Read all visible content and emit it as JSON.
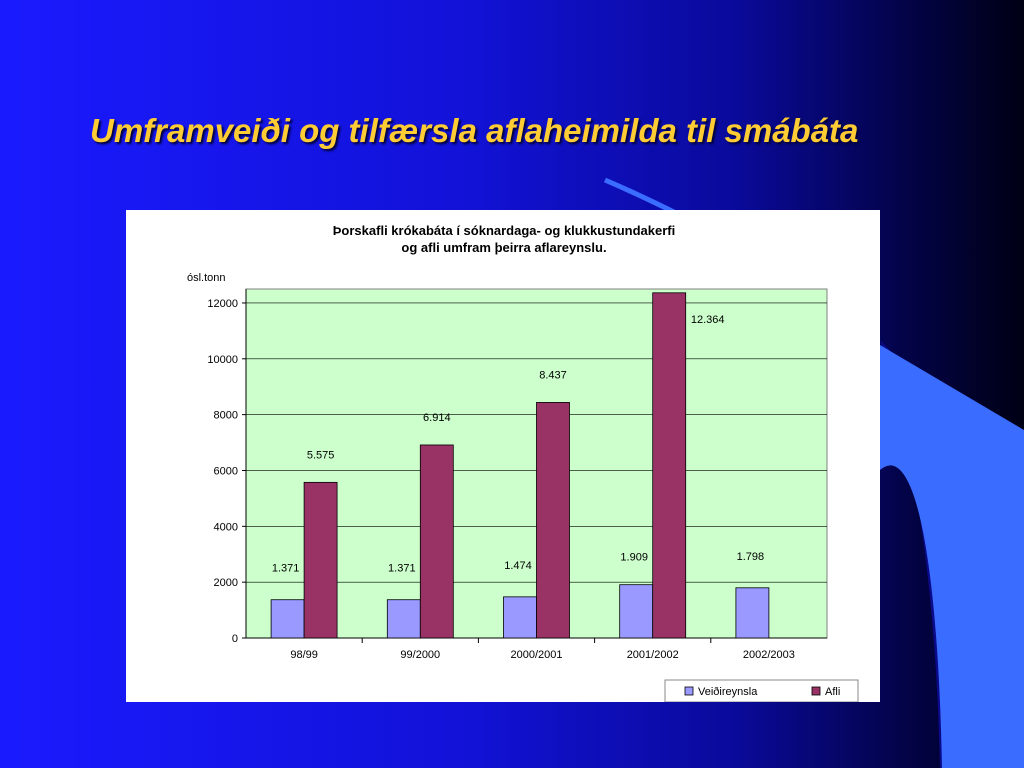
{
  "slide": {
    "title": "Umframveiði og tilfærsla aflaheimilda til smábáta"
  },
  "colors": {
    "title": "#ffcc33",
    "plot_background": "#ccffcc",
    "series_1": "#9999ff",
    "series_2": "#993366"
  },
  "chart_data": {
    "type": "bar",
    "title": [
      "Þorskafli krókabáta í sóknardaga- og klukkustundakerfi",
      "og afli umfram þeirra aflareynslu."
    ],
    "ylabel": "ósl.tonn",
    "xlabel": "",
    "ylim": [
      0,
      12500
    ],
    "yticks": [
      0,
      2000,
      4000,
      6000,
      8000,
      10000,
      12000
    ],
    "grid": true,
    "legend_position": "bottom-right",
    "categories": [
      "98/99",
      "99/2000",
      "2000/2001",
      "2001/2002",
      "2002/2003"
    ],
    "series": [
      {
        "name": "Veiðireynsla",
        "values": [
          1371,
          1371,
          1474,
          1909,
          1798
        ],
        "labels": [
          "1.371",
          "1.371",
          "1.474",
          "1.909",
          "1.798"
        ]
      },
      {
        "name": "Afli",
        "values": [
          5575,
          6914,
          8437,
          12364,
          null
        ],
        "labels": [
          "5.575",
          "6.914",
          "8.437",
          "12.364",
          null
        ]
      }
    ]
  }
}
